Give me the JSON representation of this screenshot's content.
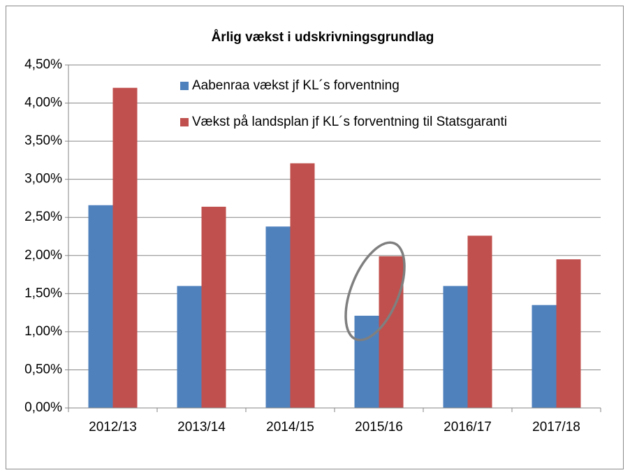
{
  "chart_data": {
    "type": "bar",
    "title": "Årlig vækst i udskrivningsgrundlag",
    "categories": [
      "2012/13",
      "2013/14",
      "2014/15",
      "2015/16",
      "2016/17",
      "2017/18"
    ],
    "series": [
      {
        "name": "Aabenraa vækst jf KL´s forventning",
        "color": "#4f81bd",
        "values": [
          2.66,
          1.6,
          2.38,
          1.21,
          1.6,
          1.35
        ]
      },
      {
        "name": "Vækst på landsplan  jf KL´s forventning til Statsgaranti",
        "color": "#c0504d",
        "values": [
          4.2,
          2.64,
          3.21,
          1.99,
          2.26,
          1.95
        ]
      }
    ],
    "ylim": [
      0,
      4.5
    ],
    "yticks": [
      {
        "value": 0,
        "label": "0,00%"
      },
      {
        "value": 0.5,
        "label": "0,50%"
      },
      {
        "value": 1,
        "label": "1,00%"
      },
      {
        "value": 1.5,
        "label": "1,50%"
      },
      {
        "value": 2,
        "label": "2,00%"
      },
      {
        "value": 2.5,
        "label": "2,50%"
      },
      {
        "value": 3,
        "label": "3,00%"
      },
      {
        "value": 3.5,
        "label": "3,50%"
      },
      {
        "value": 4,
        "label": "4,00%"
      },
      {
        "value": 4.5,
        "label": "4,50%"
      }
    ],
    "grid": true
  }
}
